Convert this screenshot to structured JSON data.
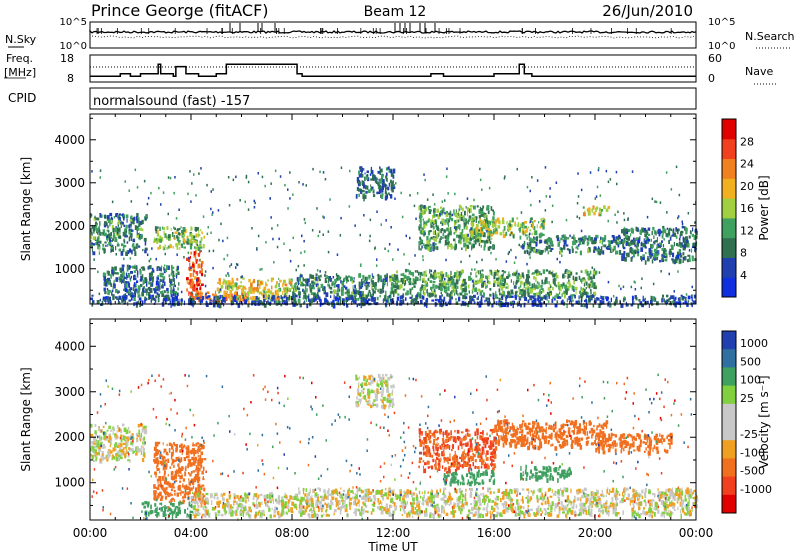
{
  "header": {
    "station": "Prince George (fitACF)",
    "beam": "Beam 12",
    "date": "26/Jun/2010"
  },
  "top_strips": {
    "nsky_label": "N.Sky",
    "nsky_ticks": [
      "10^5",
      "10^0"
    ],
    "nsearch_label": "N.Search",
    "nsearch_ticks": [
      "10^5",
      "10^0"
    ],
    "freq_label": "Freq.",
    "freq_unit": "[MHz]",
    "freq_ticks": [
      "18",
      "8"
    ],
    "nave_label": "Nave",
    "nave_ticks": [
      "60",
      "0"
    ],
    "cpid_label": "CPID",
    "cpid_text": "normalsound (fast) -157"
  },
  "colors": {
    "power": [
      "#1030e0",
      "#2040b0",
      "#307050",
      "#40a060",
      "#a0d040",
      "#f0b020",
      "#f08020",
      "#f04020",
      "#e00000"
    ],
    "velocity": [
      "#2040b0",
      "#3070a0",
      "#40a060",
      "#80d040",
      "#c8c8c8",
      "#c8c8c8",
      "#f0a020",
      "#f07020",
      "#f04020",
      "#e00000"
    ]
  },
  "chart_data": [
    {
      "type": "heatmap",
      "name": "power",
      "xlabel": "",
      "ylabel": "Slant Range [km]",
      "x_range": [
        "00:00",
        "24:00"
      ],
      "ylim": [
        180,
        4600
      ],
      "y_ticks": [
        1000,
        2000,
        3000,
        4000
      ],
      "colorbar_label": "Power [dB]",
      "colorbar_ticks": [
        "28",
        "24",
        "20",
        "16",
        "12",
        "8",
        "4"
      ],
      "clim": [
        0,
        32
      ],
      "regions": [
        {
          "x": [
            0.0,
            2.2
          ],
          "y": [
            1400,
            2300
          ],
          "v": 10
        },
        {
          "x": [
            0.5,
            3.5
          ],
          "y": [
            300,
            1100
          ],
          "v": 8
        },
        {
          "x": [
            2.5,
            4.5
          ],
          "y": [
            1500,
            2000
          ],
          "v": 14
        },
        {
          "x": [
            3.8,
            4.4
          ],
          "y": [
            300,
            1500
          ],
          "v": 26
        },
        {
          "x": [
            4.0,
            6.5
          ],
          "y": [
            250,
            500
          ],
          "v": 24
        },
        {
          "x": [
            5.0,
            8.0
          ],
          "y": [
            300,
            800
          ],
          "v": 18
        },
        {
          "x": [
            8.0,
            12.0
          ],
          "y": [
            300,
            900
          ],
          "v": 10
        },
        {
          "x": [
            10.5,
            12.0
          ],
          "y": [
            2700,
            3400
          ],
          "v": 8
        },
        {
          "x": [
            12.0,
            20.0
          ],
          "y": [
            400,
            1000
          ],
          "v": 12
        },
        {
          "x": [
            13.0,
            16.0
          ],
          "y": [
            1500,
            2500
          ],
          "v": 12
        },
        {
          "x": [
            15.0,
            18.0
          ],
          "y": [
            1800,
            2200
          ],
          "v": 16
        },
        {
          "x": [
            17.0,
            21.0
          ],
          "y": [
            1400,
            1800
          ],
          "v": 10
        },
        {
          "x": [
            19.5,
            20.5
          ],
          "y": [
            2300,
            2500
          ],
          "v": 18
        },
        {
          "x": [
            21.0,
            24.0
          ],
          "y": [
            1200,
            2000
          ],
          "v": 8
        },
        {
          "x": [
            0.0,
            24.0
          ],
          "y": [
            180,
            400
          ],
          "v": 6
        }
      ]
    },
    {
      "type": "heatmap",
      "name": "velocity",
      "xlabel": "Time UT",
      "ylabel": "Slant Range [km]",
      "x_ticks": [
        "00:00",
        "04:00",
        "08:00",
        "12:00",
        "16:00",
        "20:00",
        "00:00"
      ],
      "ylim": [
        180,
        4600
      ],
      "y_ticks": [
        1000,
        2000,
        3000,
        4000
      ],
      "colorbar_label": "Velocity [m s⁻¹]",
      "colorbar_ticks": [
        "1000",
        "500",
        "100",
        "25",
        "-25",
        "-100",
        "-500",
        "-1000"
      ],
      "regions": [
        {
          "x": [
            0.0,
            2.2
          ],
          "y": [
            1500,
            2300
          ],
          "v": 0
        },
        {
          "x": [
            2.5,
            4.5
          ],
          "y": [
            600,
            1900
          ],
          "v": -200
        },
        {
          "x": [
            4.0,
            8.0
          ],
          "y": [
            300,
            800
          ],
          "v": 0
        },
        {
          "x": [
            2.0,
            4.0
          ],
          "y": [
            300,
            600
          ],
          "v": 200
        },
        {
          "x": [
            8.0,
            12.0
          ],
          "y": [
            300,
            900
          ],
          "v": 0
        },
        {
          "x": [
            10.5,
            12.0
          ],
          "y": [
            2700,
            3400
          ],
          "v": 0
        },
        {
          "x": [
            13.0,
            16.0
          ],
          "y": [
            1300,
            2200
          ],
          "v": -300
        },
        {
          "x": [
            16.0,
            20.5
          ],
          "y": [
            1800,
            2400
          ],
          "v": -200
        },
        {
          "x": [
            20.0,
            23.0
          ],
          "y": [
            1700,
            2100
          ],
          "v": -200
        },
        {
          "x": [
            14.0,
            16.0
          ],
          "y": [
            1000,
            1300
          ],
          "v": 150
        },
        {
          "x": [
            17.0,
            19.0
          ],
          "y": [
            1100,
            1400
          ],
          "v": 150
        },
        {
          "x": [
            12.0,
            24.0
          ],
          "y": [
            300,
            900
          ],
          "v": 0
        }
      ]
    },
    {
      "type": "line",
      "name": "freq",
      "ylim": [
        8,
        18
      ],
      "x": [
        0,
        1.2,
        1.6,
        2.0,
        2.7,
        2.8,
        3.3,
        3.4,
        3.8,
        4.3,
        5.0,
        5.4,
        8.2,
        8.4,
        13.5,
        14.0,
        16.0,
        17.0,
        17.2,
        17.5,
        24
      ],
      "values": [
        10,
        11,
        10,
        11,
        15,
        11,
        10,
        14,
        11,
        10,
        11,
        15,
        11,
        10,
        11,
        10,
        11,
        15,
        11,
        10,
        10
      ]
    }
  ]
}
